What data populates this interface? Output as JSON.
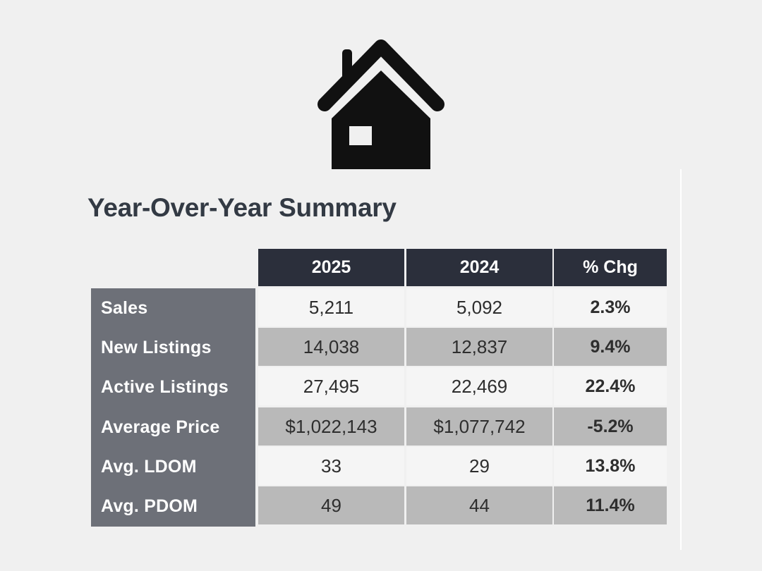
{
  "header": {
    "icon": "house-icon",
    "title": "Year-Over-Year Summary"
  },
  "colors": {
    "header_bg": "#2b2f3b",
    "label_bg": "#6d7078",
    "row_light": "#f5f5f5",
    "row_dark": "#b9b9b9"
  },
  "chart_data": {
    "type": "table",
    "title": "Year-Over-Year Summary",
    "columns": [
      "2025",
      "2024",
      "% Chg"
    ],
    "rows": [
      {
        "label": "Sales",
        "values": [
          "5,211",
          "5,092"
        ],
        "change": "2.3%"
      },
      {
        "label": "New Listings",
        "values": [
          "14,038",
          "12,837"
        ],
        "change": "9.4%"
      },
      {
        "label": "Active Listings",
        "values": [
          "27,495",
          "22,469"
        ],
        "change": "22.4%"
      },
      {
        "label": "Average Price",
        "values": [
          "$1,022,143",
          "$1,077,742"
        ],
        "change": "-5.2%"
      },
      {
        "label": "Avg. LDOM",
        "values": [
          "33",
          "29"
        ],
        "change": "13.8%"
      },
      {
        "label": "Avg. PDOM",
        "values": [
          "49",
          "44"
        ],
        "change": "11.4%"
      }
    ]
  }
}
